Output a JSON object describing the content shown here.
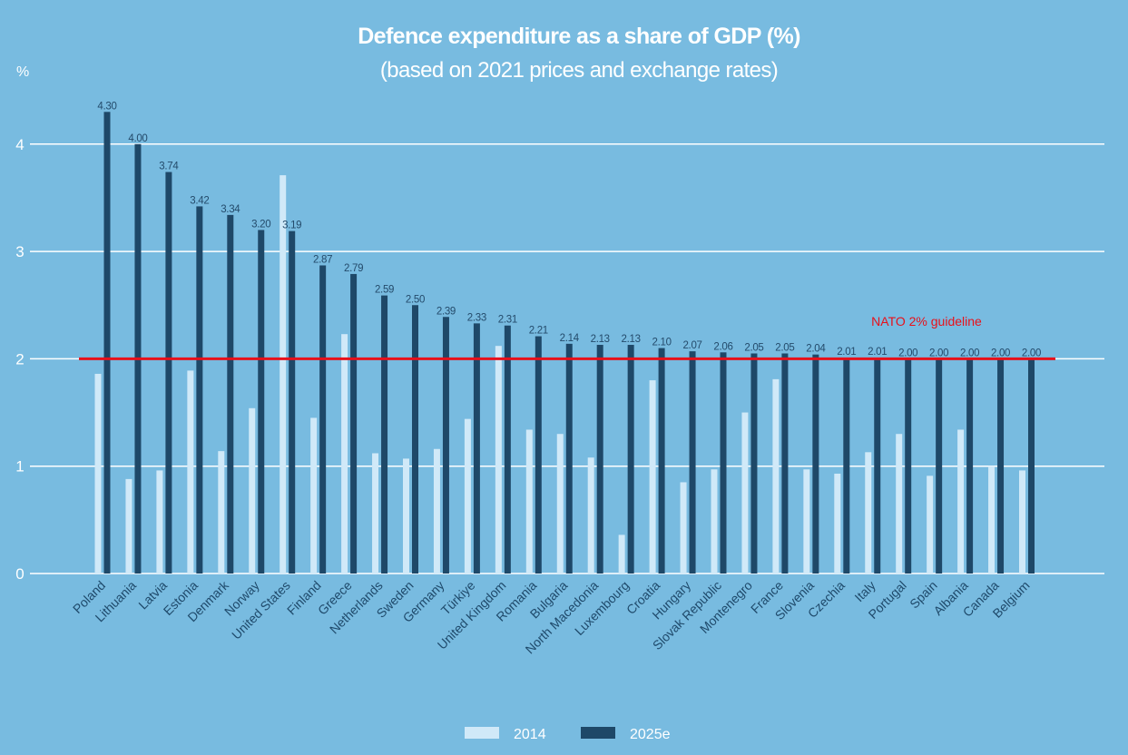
{
  "colors": {
    "background": "#78bbe0",
    "series_2014": "#d0e9f8",
    "series_2025e": "#1e4868",
    "gridline": "#ffffff",
    "reference_line": "#e8101a",
    "data_label": "#244b6b",
    "axis_label": "#1f4a6b"
  },
  "chart_data": {
    "type": "bar",
    "title": "Defence expenditure as a share of GDP (%)",
    "subtitle": "(based on 2021 prices and exchange rates)",
    "xlabel": "",
    "ylabel": "%",
    "ylim": [
      0,
      4.5
    ],
    "yticks": [
      0,
      1,
      2,
      3,
      4
    ],
    "grid": true,
    "legend_position": "bottom-center",
    "categories": [
      "Poland",
      "Lithuania",
      "Latvia",
      "Estonia",
      "Denmark",
      "Norway",
      "United States",
      "Finland",
      "Greece",
      "Netherlands",
      "Sweden",
      "Germany",
      "Türkiye",
      "United Kingdom",
      "Romania",
      "Bulgaria",
      "North Macedonia",
      "Luxembourg",
      "Croatia",
      "Hungary",
      "Slovak Republic",
      "Montenegro",
      "France",
      "Slovenia",
      "Czechia",
      "Italy",
      "Portugal",
      "Spain",
      "Albania",
      "Canada",
      "Belgium"
    ],
    "series": [
      {
        "name": "2014",
        "values": [
          1.86,
          0.88,
          0.96,
          1.89,
          1.14,
          1.54,
          3.71,
          1.45,
          2.23,
          1.12,
          1.07,
          1.16,
          1.44,
          2.12,
          1.34,
          1.3,
          1.08,
          0.36,
          1.8,
          0.85,
          0.97,
          1.5,
          1.81,
          0.97,
          0.93,
          1.13,
          1.3,
          0.91,
          1.34,
          1.0,
          0.96
        ]
      },
      {
        "name": "2025e",
        "values": [
          4.3,
          4.0,
          3.74,
          3.42,
          3.34,
          3.2,
          3.19,
          2.87,
          2.79,
          2.59,
          2.5,
          2.39,
          2.33,
          2.31,
          2.21,
          2.14,
          2.13,
          2.13,
          2.1,
          2.07,
          2.06,
          2.05,
          2.05,
          2.04,
          2.01,
          2.01,
          2.0,
          2.0,
          2.0,
          2.0,
          2.0
        ],
        "data_labels": [
          "4.30",
          "4.00",
          "3.74",
          "3.42",
          "3.34",
          "3.20",
          "3.19",
          "2.87",
          "2.79",
          "2.59",
          "2.50",
          "2.39",
          "2.33",
          "2.31",
          "2.21",
          "2.14",
          "2.13",
          "2.13",
          "2.10",
          "2.07",
          "2.06",
          "2.05",
          "2.05",
          "2.04",
          "2.01",
          "2.01",
          "2.00",
          "2.00",
          "2.00",
          "2.00",
          "2.00"
        ]
      }
    ],
    "reference_line": {
      "value": 2,
      "label": "NATO 2% guideline"
    }
  }
}
